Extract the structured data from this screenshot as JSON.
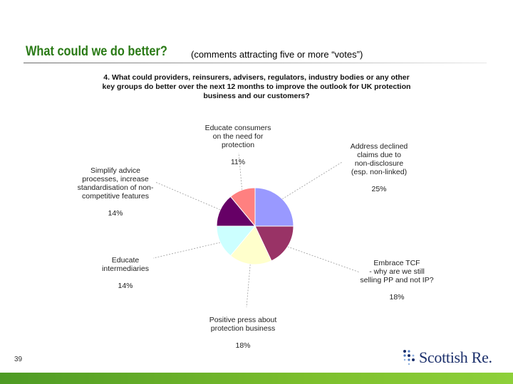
{
  "slide": {
    "title": "What could we do better?",
    "subtitle": "(comments attracting five or more “votes”)",
    "page_number": "39",
    "logo_text": "Scottish Re."
  },
  "chart_data": {
    "type": "pie",
    "title": "4. What could providers, reinsurers, advisers, regulators, industry bodies or any other key groups do better over the next 12 months to improve the outlook for UK protection business and our customers?",
    "slices": [
      {
        "label": "Address declined claims due to non-disclosure (esp. non-linked)",
        "value": 25,
        "value_label": "25%",
        "color": "#9999ff"
      },
      {
        "label": "Embrace TCF - why are we still selling PP and not IP?",
        "value": 18,
        "value_label": "18%",
        "color": "#993366"
      },
      {
        "label": "Positive press about protection business",
        "value": 18,
        "value_label": "18%",
        "color": "#ffffcc"
      },
      {
        "label": "Educate intermediaries",
        "value": 14,
        "value_label": "14%",
        "color": "#ccffff"
      },
      {
        "label": "Simplify advice processes, increase standardisation of non-competitive features",
        "value": 14,
        "value_label": "14%",
        "color": "#660066"
      },
      {
        "label": "Educate consumers on the need for protection",
        "value": 11,
        "value_label": "11%",
        "color": "#ff8080"
      }
    ]
  },
  "labels": [
    {
      "text": "Address declined\nclaims due to\nnon-disclosure\n(esp. non-linked)",
      "pct": "25%"
    },
    {
      "text": "Embrace TCF\n- why are we still\nselling PP and not IP?",
      "pct": "18%"
    },
    {
      "text": "Positive press about\nprotection business",
      "pct": "18%"
    },
    {
      "text": "Educate\nintermediaries",
      "pct": "14%"
    },
    {
      "text": "Simplify advice\nprocesses, increase\nstandardisation of non-\ncompetitive features",
      "pct": "14%"
    },
    {
      "text": "Educate consumers\non the need for\nprotection",
      "pct": "11%"
    }
  ],
  "colors": {
    "title_green": "#2a7a16",
    "band_green": "#6fb22a",
    "logo_navy": "#1b2f6b"
  }
}
